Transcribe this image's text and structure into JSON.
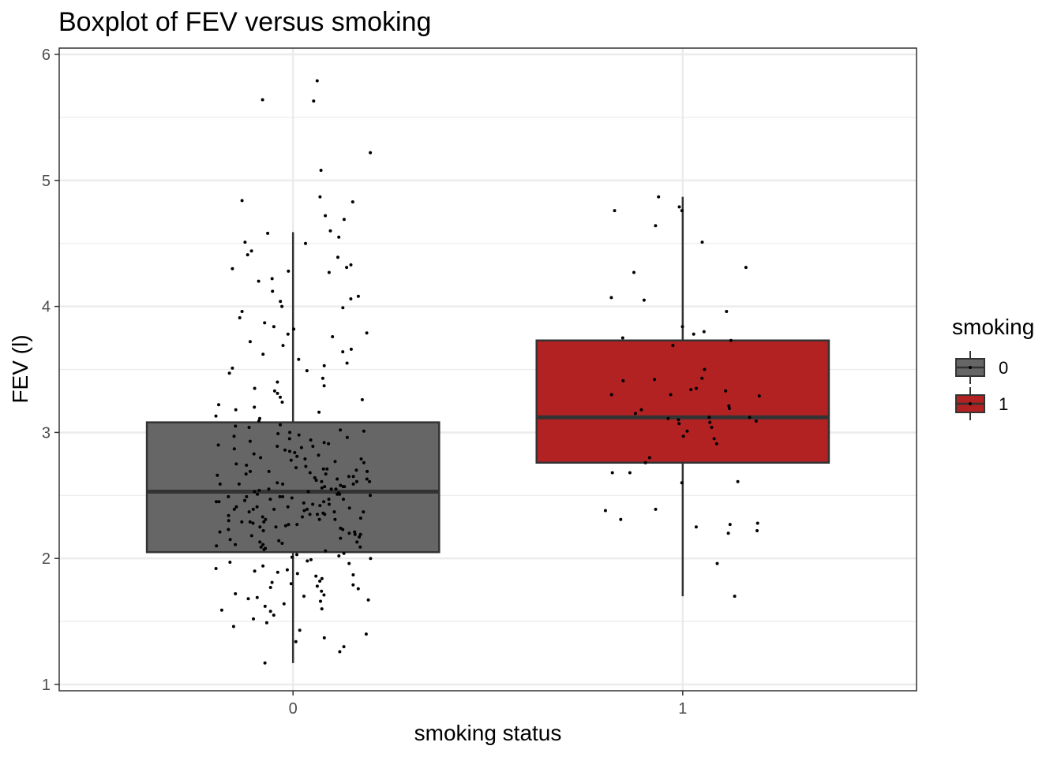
{
  "chart_data": {
    "type": "boxplot",
    "title": "Boxplot of FEV versus smoking",
    "xlabel": "smoking status",
    "ylabel": "FEV (l)",
    "categories": [
      "0",
      "1"
    ],
    "ylim": [
      0.95,
      6.05
    ],
    "yticks": [
      1,
      2,
      3,
      4,
      5,
      6
    ],
    "grid": true,
    "legend": {
      "title": "smoking",
      "position": "right",
      "entries": [
        "0",
        "1"
      ]
    },
    "series": [
      {
        "category": "0",
        "color": "#666666",
        "whisker_low": 1.17,
        "q1": 2.05,
        "median": 2.53,
        "q3": 3.08,
        "whisker_high": 4.59,
        "points": [
          5.79,
          5.64,
          5.63,
          5.22,
          5.08,
          4.87,
          4.84,
          4.83,
          4.72,
          4.69,
          4.6,
          4.58,
          4.55,
          4.51,
          4.5,
          4.44,
          4.41,
          4.39,
          4.33,
          4.31,
          4.3,
          4.28,
          4.27,
          4.22,
          4.2,
          4.12,
          4.08,
          4.06,
          4.04,
          4.0,
          3.99,
          3.96,
          3.91,
          3.87,
          3.84,
          3.82,
          3.79,
          3.78,
          3.76,
          3.72,
          3.69,
          3.66,
          3.64,
          3.62,
          3.58,
          3.55,
          3.53,
          3.51,
          3.49,
          3.47,
          3.43,
          3.4,
          3.37,
          3.35,
          3.33,
          3.31,
          3.28,
          3.26,
          3.24,
          3.22,
          3.2,
          3.18,
          3.16,
          3.13,
          3.11,
          3.09,
          3.06,
          3.04,
          3.02,
          3.0,
          2.98,
          2.96,
          2.94,
          2.92,
          2.9,
          2.88,
          2.86,
          2.84,
          2.82,
          2.8,
          2.78,
          2.76,
          2.74,
          2.72,
          2.7,
          2.68,
          2.66,
          2.64,
          2.62,
          2.6,
          2.58,
          2.56,
          2.54,
          2.52,
          2.5,
          2.48,
          2.46,
          2.44,
          2.42,
          2.4,
          2.38,
          2.36,
          2.34,
          2.32,
          2.3,
          2.28,
          2.26,
          2.24,
          2.22,
          2.2,
          2.18,
          2.16,
          2.14,
          2.12,
          2.1,
          2.08,
          2.06,
          2.04,
          2.02,
          2.0,
          1.98,
          1.96,
          1.94,
          1.92,
          1.9,
          1.88,
          1.86,
          1.84,
          1.82,
          1.8,
          1.78,
          1.76,
          1.74,
          1.72,
          1.7,
          1.68,
          1.66,
          1.64,
          1.62,
          1.6,
          1.58,
          1.55,
          1.52,
          1.49,
          1.46,
          1.43,
          1.4,
          1.37,
          1.34,
          1.3,
          1.26,
          1.17,
          2.95,
          2.85,
          2.75,
          2.65,
          2.55,
          2.45,
          2.35,
          2.25,
          2.15,
          3.05,
          2.97,
          2.87,
          2.77,
          2.67,
          2.57,
          2.47,
          2.37,
          2.27,
          2.17,
          2.07,
          1.97,
          1.87,
          1.77,
          1.67,
          2.93,
          2.83,
          2.73,
          2.63,
          2.53,
          2.43,
          2.33,
          2.23,
          2.13,
          2.03,
          2.91,
          2.81,
          2.71,
          2.61,
          2.51,
          2.41,
          2.31,
          2.21,
          2.11,
          2.01,
          1.91,
          1.81,
          1.71,
          2.89,
          2.79,
          2.69,
          2.59,
          2.49,
          2.39,
          2.29,
          2.19,
          2.09,
          1.99,
          1.89,
          1.79,
          1.69,
          1.59,
          2.99,
          2.89,
          2.79,
          2.69,
          2.59,
          2.49,
          2.39,
          2.29,
          2.19,
          2.09,
          3.01,
          2.71,
          2.61,
          2.51,
          2.41,
          2.31,
          2.21,
          2.11,
          2.63,
          2.53,
          2.43,
          2.33,
          2.23,
          2.13,
          2.55,
          2.45,
          2.35,
          2.25,
          2.57,
          2.47,
          2.37,
          2.27,
          2.59,
          2.49,
          2.39,
          2.29,
          2.61,
          2.51,
          2.41,
          2.31,
          2.65,
          2.55,
          2.45,
          2.35,
          2.67,
          2.57,
          2.47,
          2.37,
          2.69,
          2.59,
          2.49,
          2.39
        ]
      },
      {
        "category": "1",
        "color": "#b22222",
        "whisker_low": 1.7,
        "q1": 2.76,
        "median": 3.12,
        "q3": 3.73,
        "whisker_high": 4.87,
        "points": [
          4.87,
          4.79,
          4.76,
          4.76,
          4.64,
          4.51,
          4.31,
          4.27,
          4.07,
          4.05,
          3.96,
          3.84,
          3.8,
          3.78,
          3.75,
          3.73,
          3.69,
          3.5,
          3.43,
          3.42,
          3.41,
          3.35,
          3.34,
          3.33,
          3.3,
          3.3,
          3.29,
          3.21,
          3.19,
          3.18,
          3.15,
          3.12,
          3.12,
          3.11,
          3.1,
          3.09,
          3.08,
          3.07,
          3.04,
          3.01,
          2.97,
          2.95,
          2.91,
          2.8,
          2.76,
          2.68,
          2.68,
          2.61,
          2.6,
          2.39,
          2.38,
          2.31,
          2.28,
          2.27,
          2.25,
          2.22,
          2.2,
          1.96,
          1.7
        ]
      }
    ]
  }
}
